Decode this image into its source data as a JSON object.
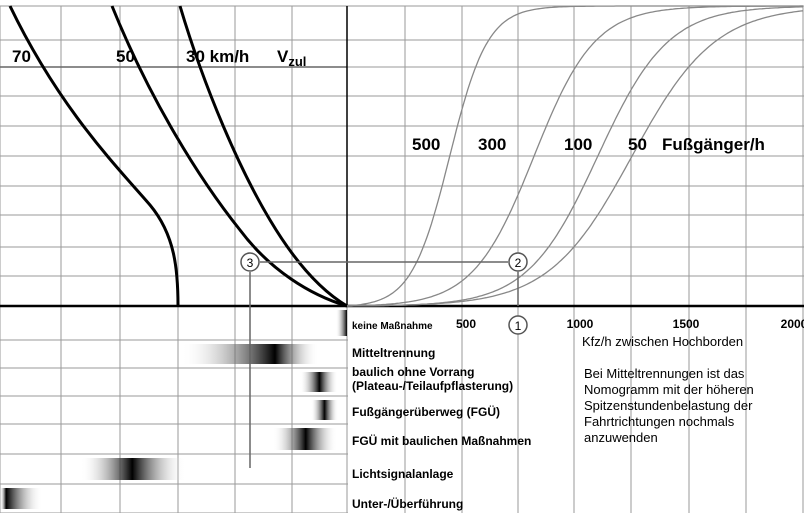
{
  "chart_data": {
    "type": "line",
    "title": "",
    "left_panel": {
      "label": "V",
      "label_sub": "zul",
      "speed_labels": [
        "70",
        "50",
        "30 km/h"
      ],
      "curve_color": "#000000"
    },
    "right_panel": {
      "series_label_unit": "Fußgänger/h",
      "series": [
        {
          "name": "500",
          "midpoint": 450,
          "steepness": 0.012
        },
        {
          "name": "300",
          "midpoint": 820,
          "steepness": 0.0075
        },
        {
          "name": "100",
          "midpoint": 1100,
          "steepness": 0.0065
        },
        {
          "name": "50",
          "midpoint": 1250,
          "steepness": 0.0055
        }
      ],
      "xlabel": "Kfz/h zwischen Hochborden",
      "x_ticks": [
        "500",
        "1000",
        "1500",
        "2000"
      ],
      "xlim": [
        0,
        2000
      ],
      "curve_color": "#888888"
    },
    "markers": [
      {
        "id": "3"
      },
      {
        "id": "2"
      },
      {
        "id": "1"
      }
    ],
    "measures": [
      {
        "label": "keine Maßnahme",
        "range": [
          0.82,
          1.0
        ],
        "peak": 1.0
      },
      {
        "label": "Mitteltrennung",
        "range": [
          0.32,
          0.95
        ],
        "peak": 0.75
      },
      {
        "label": "baulich ohne Vorrang (Plateau-/Teilaufpflasterung)",
        "range": [
          0.65,
          0.98
        ],
        "peak": 0.82
      },
      {
        "label": "Fußgängerüberweg (FGÜ)",
        "range": [
          0.7,
          0.98
        ],
        "peak": 0.84
      },
      {
        "label": "FGÜ mit baulichen Maßnahmen",
        "range": [
          0.55,
          0.98
        ],
        "peak": 0.77
      },
      {
        "label": "Lichtsignalanlage",
        "range": [
          0.15,
          0.7
        ],
        "peak": 0.42
      },
      {
        "label": "Unter-/Überführung",
        "range": [
          0.0,
          0.35
        ],
        "peak": 0.05
      }
    ],
    "note_lines": [
      "Bei Mitteltrennungen ist das",
      "Nomogramm mit der höheren",
      "Spitzenstundenbelastung der",
      "Fahrtrichtungen nochmals",
      "anzuwenden"
    ],
    "grid": true
  }
}
